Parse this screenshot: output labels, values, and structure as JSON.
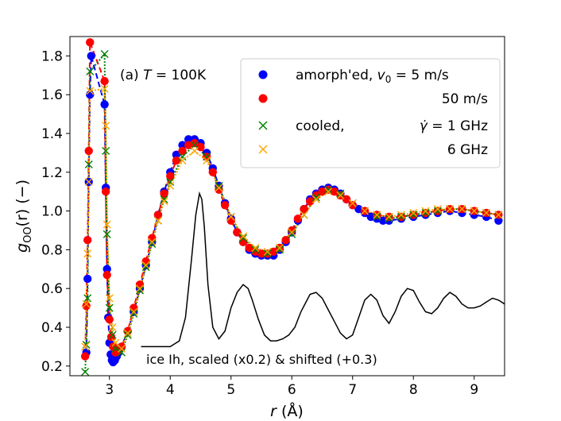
{
  "chart_data": {
    "type": "scatter",
    "title_prefix": "(a)",
    "title_var": "T",
    "title_rest": " = 100K",
    "xlabel_var": "r",
    "xlabel_unit": "(Å)",
    "ylabel_var": "g",
    "ylabel_sub": "OO",
    "ylabel_rest": "(r)  (−)",
    "xlim": [
      2.35,
      9.5
    ],
    "ylim": [
      0.15,
      1.9
    ],
    "xticks": [
      "3",
      "4",
      "5",
      "6",
      "7",
      "8",
      "9"
    ],
    "xtick_values": [
      3,
      4,
      5,
      6,
      7,
      8,
      9
    ],
    "yticks": [
      "0.2",
      "0.4",
      "0.6",
      "0.8",
      "1.0",
      "1.2",
      "1.4",
      "1.6",
      "1.8"
    ],
    "ytick_values": [
      0.2,
      0.4,
      0.6,
      0.8,
      1.0,
      1.2,
      1.4,
      1.6,
      1.8
    ],
    "legend_position": "top-right",
    "legend": [
      {
        "prefix": "amorph'ed, ",
        "var": "v",
        "sub": "0",
        "suffix": " = 5 m/s",
        "marker": "circle",
        "color": "#0000ff"
      },
      {
        "prefix": "",
        "var": "",
        "sub": "",
        "suffix": "50 m/s",
        "marker": "circle",
        "color": "#ff0000"
      },
      {
        "prefix": "cooled,",
        "var": "γ̇",
        "sub": "",
        "suffix": " = 1 GHz",
        "marker": "x",
        "color": "#008000"
      },
      {
        "prefix": "",
        "var": "",
        "sub": "",
        "suffix": "6 GHz",
        "marker": "x",
        "color": "#ffa500"
      }
    ],
    "annotation": "ice Ih, scaled (x0.2) & shifted (+0.3)",
    "series": [
      {
        "name": "amorph'ed 5 m/s",
        "color": "#0000ff",
        "marker": "circle",
        "line": "dashed",
        "x": [
          2.62,
          2.64,
          2.66,
          2.68,
          2.7,
          2.92,
          2.94,
          2.96,
          2.98,
          3.0,
          3.02,
          3.04,
          3.06,
          3.09,
          3.12,
          3.15,
          3.2,
          3.3,
          3.4,
          3.5,
          3.6,
          3.7,
          3.8,
          3.9,
          4.0,
          4.1,
          4.2,
          4.3,
          4.4,
          4.5,
          4.6,
          4.7,
          4.8,
          4.9,
          5.0,
          5.1,
          5.2,
          5.3,
          5.4,
          5.5,
          5.6,
          5.7,
          5.8,
          5.9,
          6.0,
          6.1,
          6.2,
          6.3,
          6.4,
          6.5,
          6.6,
          6.7,
          6.8,
          6.9,
          7.0,
          7.1,
          7.2,
          7.3,
          7.4,
          7.5,
          7.6,
          7.8,
          8.0,
          8.2,
          8.4,
          8.6,
          8.8,
          9.0,
          9.2,
          9.4
        ],
        "y": [
          0.27,
          0.65,
          1.15,
          1.6,
          1.8,
          1.55,
          1.12,
          0.7,
          0.45,
          0.32,
          0.26,
          0.23,
          0.22,
          0.23,
          0.25,
          0.27,
          0.3,
          0.38,
          0.48,
          0.6,
          0.72,
          0.84,
          0.98,
          1.1,
          1.2,
          1.29,
          1.34,
          1.37,
          1.37,
          1.35,
          1.3,
          1.22,
          1.13,
          1.04,
          0.96,
          0.89,
          0.84,
          0.8,
          0.78,
          0.77,
          0.77,
          0.77,
          0.8,
          0.84,
          0.89,
          0.95,
          1.01,
          1.06,
          1.09,
          1.11,
          1.12,
          1.11,
          1.09,
          1.06,
          1.03,
          1.01,
          0.99,
          0.97,
          0.96,
          0.95,
          0.95,
          0.96,
          0.97,
          0.98,
          0.99,
          1.0,
          0.99,
          0.98,
          0.97,
          0.95
        ]
      },
      {
        "name": "amorph'ed 50 m/s",
        "color": "#ff0000",
        "marker": "circle",
        "line": "dashed",
        "x": [
          2.6,
          2.62,
          2.64,
          2.66,
          2.68,
          2.92,
          2.94,
          2.96,
          3.0,
          3.03,
          3.06,
          3.1,
          3.14,
          3.2,
          3.3,
          3.4,
          3.5,
          3.6,
          3.7,
          3.8,
          3.9,
          4.0,
          4.1,
          4.2,
          4.3,
          4.4,
          4.5,
          4.6,
          4.7,
          4.8,
          4.9,
          5.0,
          5.1,
          5.2,
          5.3,
          5.4,
          5.5,
          5.6,
          5.7,
          5.8,
          5.9,
          6.0,
          6.1,
          6.2,
          6.3,
          6.4,
          6.5,
          6.6,
          6.7,
          6.8,
          6.9,
          7.0,
          7.2,
          7.4,
          7.6,
          7.8,
          8.0,
          8.2,
          8.4,
          8.6,
          8.8,
          9.0,
          9.2,
          9.4
        ],
        "y": [
          0.25,
          0.51,
          0.85,
          1.31,
          1.87,
          1.67,
          1.1,
          0.67,
          0.44,
          0.35,
          0.3,
          0.27,
          0.28,
          0.3,
          0.38,
          0.5,
          0.62,
          0.74,
          0.86,
          0.98,
          1.09,
          1.18,
          1.26,
          1.31,
          1.34,
          1.35,
          1.33,
          1.28,
          1.2,
          1.11,
          1.03,
          0.95,
          0.89,
          0.84,
          0.81,
          0.79,
          0.78,
          0.78,
          0.79,
          0.81,
          0.85,
          0.9,
          0.96,
          1.01,
          1.05,
          1.08,
          1.1,
          1.11,
          1.1,
          1.08,
          1.06,
          1.03,
          1.0,
          0.98,
          0.97,
          0.97,
          0.98,
          0.99,
          1.0,
          1.01,
          1.01,
          1.0,
          0.99,
          0.98
        ]
      },
      {
        "name": "cooled 1 GHz",
        "color": "#008000",
        "marker": "x",
        "line": "dotted",
        "x": [
          2.6,
          2.62,
          2.64,
          2.66,
          2.68,
          2.92,
          2.94,
          2.96,
          3.0,
          3.05,
          3.1,
          3.2,
          3.3,
          3.4,
          3.5,
          3.6,
          3.7,
          3.8,
          3.9,
          4.0,
          4.2,
          4.4,
          4.6,
          4.8,
          5.0,
          5.2,
          5.4,
          5.6,
          5.8,
          6.0,
          6.2,
          6.4,
          6.6,
          6.8,
          7.0,
          7.2,
          7.4,
          7.6,
          7.8,
          8.0,
          8.2,
          8.4,
          8.6,
          8.8,
          9.0,
          9.2,
          9.4
        ],
        "y": [
          0.17,
          0.31,
          0.55,
          1.24,
          1.72,
          1.81,
          1.31,
          0.88,
          0.5,
          0.36,
          0.29,
          0.27,
          0.36,
          0.47,
          0.59,
          0.71,
          0.83,
          0.95,
          1.06,
          1.15,
          1.28,
          1.34,
          1.28,
          1.13,
          0.97,
          0.86,
          0.8,
          0.78,
          0.8,
          0.88,
          0.98,
          1.07,
          1.11,
          1.09,
          1.04,
          1.0,
          0.97,
          0.96,
          0.97,
          0.98,
          0.99,
          1.0,
          1.01,
          1.01,
          1.0,
          0.99,
          0.98
        ]
      },
      {
        "name": "cooled 6 GHz",
        "color": "#ffa500",
        "marker": "x",
        "line": "dotted",
        "x": [
          2.6,
          2.62,
          2.64,
          2.66,
          2.68,
          2.92,
          2.94,
          2.96,
          3.0,
          3.05,
          3.1,
          3.2,
          3.3,
          3.4,
          3.5,
          3.6,
          3.7,
          3.8,
          3.9,
          4.0,
          4.2,
          4.4,
          4.6,
          4.8,
          5.0,
          5.2,
          5.4,
          5.6,
          5.8,
          6.0,
          6.2,
          6.4,
          6.6,
          6.8,
          7.0,
          7.2,
          7.4,
          7.6,
          7.8,
          8.0,
          8.2,
          8.4,
          8.6,
          8.8,
          9.0,
          9.2,
          9.4
        ],
        "y": [
          0.3,
          0.52,
          0.78,
          1.15,
          1.62,
          1.63,
          1.44,
          0.93,
          0.55,
          0.4,
          0.32,
          0.29,
          0.37,
          0.48,
          0.6,
          0.72,
          0.84,
          0.95,
          1.05,
          1.13,
          1.26,
          1.31,
          1.26,
          1.12,
          0.97,
          0.87,
          0.81,
          0.79,
          0.81,
          0.89,
          0.98,
          1.06,
          1.1,
          1.08,
          1.04,
          1.0,
          0.98,
          0.97,
          0.98,
          0.99,
          1.0,
          1.01,
          1.01,
          1.01,
          1.0,
          0.99,
          0.98
        ]
      }
    ],
    "ice_ih": {
      "name": "ice Ih",
      "color": "#000000",
      "line": "solid",
      "x": [
        3.52,
        4.0,
        4.15,
        4.25,
        4.35,
        4.42,
        4.48,
        4.52,
        4.56,
        4.62,
        4.7,
        4.8,
        4.9,
        5.0,
        5.1,
        5.2,
        5.28,
        5.35,
        5.45,
        5.55,
        5.65,
        5.75,
        5.85,
        5.95,
        6.05,
        6.15,
        6.3,
        6.4,
        6.5,
        6.6,
        6.7,
        6.8,
        6.9,
        7.0,
        7.1,
        7.2,
        7.3,
        7.4,
        7.5,
        7.6,
        7.7,
        7.8,
        7.9,
        8.0,
        8.1,
        8.2,
        8.3,
        8.4,
        8.5,
        8.6,
        8.7,
        8.8,
        8.9,
        9.0,
        9.1,
        9.2,
        9.3,
        9.4,
        9.5
      ],
      "y": [
        0.3,
        0.3,
        0.33,
        0.45,
        0.75,
        0.98,
        1.09,
        1.06,
        0.92,
        0.62,
        0.4,
        0.34,
        0.38,
        0.5,
        0.58,
        0.62,
        0.6,
        0.54,
        0.44,
        0.36,
        0.33,
        0.33,
        0.34,
        0.36,
        0.4,
        0.48,
        0.57,
        0.58,
        0.55,
        0.49,
        0.43,
        0.37,
        0.34,
        0.36,
        0.45,
        0.54,
        0.57,
        0.54,
        0.46,
        0.42,
        0.48,
        0.56,
        0.6,
        0.59,
        0.53,
        0.48,
        0.47,
        0.5,
        0.55,
        0.58,
        0.56,
        0.52,
        0.5,
        0.5,
        0.51,
        0.53,
        0.55,
        0.54,
        0.52
      ]
    }
  }
}
